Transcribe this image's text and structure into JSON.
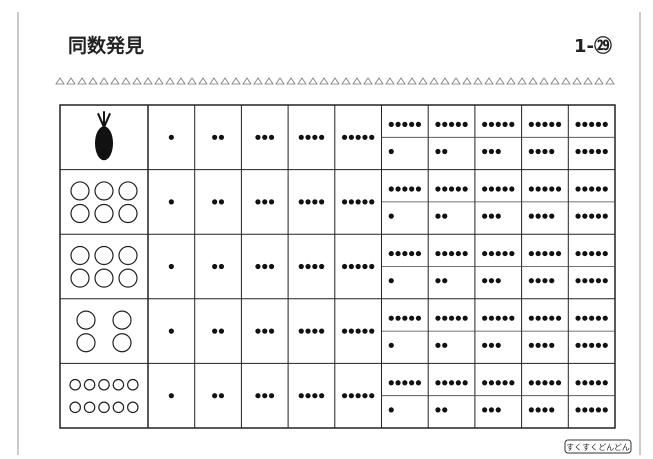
{
  "header": {
    "title": "同数発見",
    "number": "1-㉙"
  },
  "grid": {
    "dot_counts": [
      1,
      2,
      3,
      4,
      5,
      6,
      7,
      8,
      9,
      10
    ],
    "picture_counts": [
      1,
      6,
      6,
      4,
      10
    ]
  },
  "footer": {
    "logo": "すくすくどんどん"
  }
}
